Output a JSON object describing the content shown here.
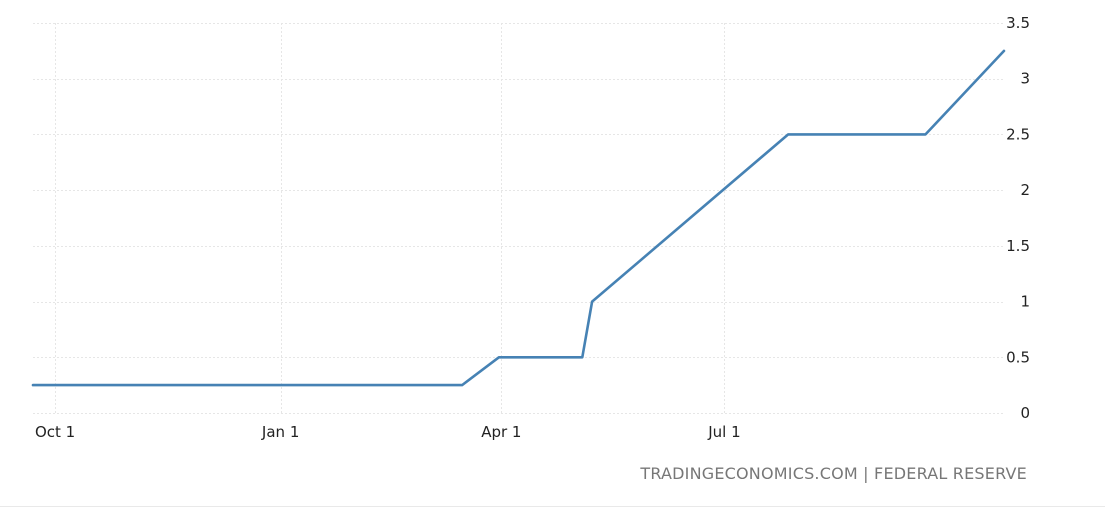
{
  "chart_data": {
    "type": "line",
    "title": "",
    "xlabel": "",
    "ylabel": "",
    "x_ticks": [
      {
        "label": "Oct 1",
        "date": "2021-10-01"
      },
      {
        "label": "Jan 1",
        "date": "2022-01-01"
      },
      {
        "label": "Apr 1",
        "date": "2022-04-01"
      },
      {
        "label": "Jul 1",
        "date": "2022-07-01"
      }
    ],
    "y_ticks": [
      {
        "label": "0",
        "value": 0
      },
      {
        "label": "0.5",
        "value": 0.5
      },
      {
        "label": "1",
        "value": 1
      },
      {
        "label": "1.5",
        "value": 1.5
      },
      {
        "label": "2",
        "value": 2
      },
      {
        "label": "2.5",
        "value": 2.5
      },
      {
        "label": "3",
        "value": 3
      },
      {
        "label": "3.5",
        "value": 3.5
      }
    ],
    "xlim": [
      "2021-09-22",
      "2022-10-23"
    ],
    "ylim": [
      0,
      3.5
    ],
    "grid": true,
    "legend": "none",
    "line_color": "#4682b4",
    "series": [
      {
        "points": [
          {
            "date": "2021-09-22",
            "value": 0.25
          },
          {
            "date": "2022-03-16",
            "value": 0.25
          },
          {
            "date": "2022-03-31",
            "value": 0.5
          },
          {
            "date": "2022-05-04",
            "value": 0.5
          },
          {
            "date": "2022-05-08",
            "value": 1.0
          },
          {
            "date": "2022-07-27",
            "value": 2.5
          },
          {
            "date": "2022-09-21",
            "value": 2.5
          },
          {
            "date": "2022-10-23",
            "value": 3.25
          }
        ]
      }
    ]
  },
  "source_text": "TRADINGECONOMICS.COM | FEDERAL RESERVE"
}
